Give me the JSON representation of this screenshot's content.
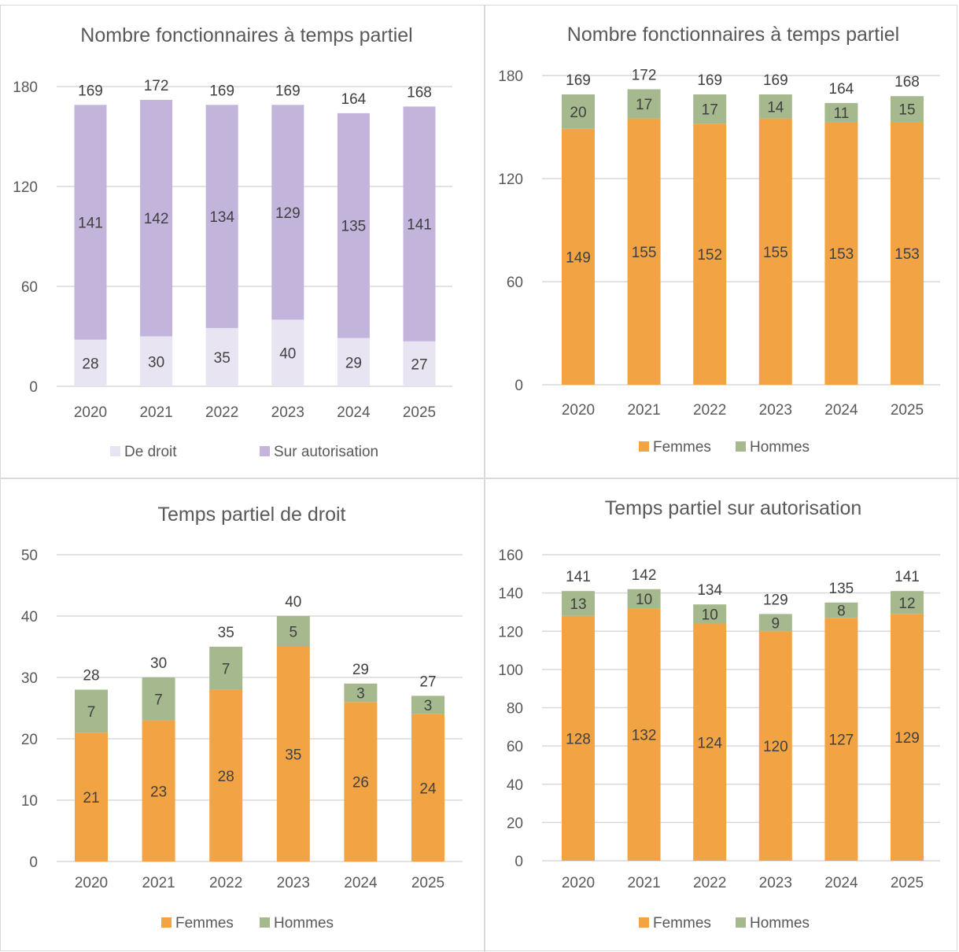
{
  "chart_data": [
    {
      "type": "bar",
      "stacked": true,
      "title": "Nombre fonctionnaires à temps partiel",
      "categories": [
        "2020",
        "2021",
        "2022",
        "2023",
        "2024",
        "2025"
      ],
      "series": [
        {
          "name": "De droit",
          "color": "#e8e4f2",
          "values": [
            28,
            30,
            35,
            40,
            29,
            27
          ]
        },
        {
          "name": "Sur autorisation",
          "color": "#c3b4dc",
          "values": [
            141,
            142,
            134,
            129,
            135,
            141
          ]
        }
      ],
      "totals": [
        169,
        172,
        169,
        169,
        164,
        168
      ],
      "ylim": [
        0,
        180
      ],
      "yticks": [
        0,
        60,
        120,
        180
      ],
      "grid": true,
      "legend": "bottom"
    },
    {
      "type": "bar",
      "stacked": true,
      "title": "Nombre fonctionnaires à temps partiel",
      "categories": [
        "2020",
        "2021",
        "2022",
        "2023",
        "2024",
        "2025"
      ],
      "series": [
        {
          "name": "Femmes",
          "color": "#f2a444",
          "values": [
            149,
            155,
            152,
            155,
            153,
            153
          ]
        },
        {
          "name": "Hommes",
          "color": "#a6b88e",
          "values": [
            20,
            17,
            17,
            14,
            11,
            15
          ]
        }
      ],
      "totals": [
        169,
        172,
        169,
        169,
        164,
        168
      ],
      "ylim": [
        0,
        180
      ],
      "yticks": [
        0,
        60,
        120,
        180
      ],
      "grid": true,
      "legend": "bottom"
    },
    {
      "type": "bar",
      "stacked": true,
      "title": "Temps partiel de droit",
      "categories": [
        "2020",
        "2021",
        "2022",
        "2023",
        "2024",
        "2025"
      ],
      "series": [
        {
          "name": "Femmes",
          "color": "#f2a444",
          "values": [
            21,
            23,
            28,
            35,
            26,
            24
          ]
        },
        {
          "name": "Hommes",
          "color": "#a6b88e",
          "values": [
            7,
            7,
            7,
            5,
            3,
            3
          ]
        }
      ],
      "totals": [
        28,
        30,
        35,
        40,
        29,
        27
      ],
      "ylim": [
        0,
        50
      ],
      "yticks": [
        0,
        10,
        20,
        30,
        40,
        50
      ],
      "grid": true,
      "legend": "bottom"
    },
    {
      "type": "bar",
      "stacked": true,
      "title": "Temps partiel sur autorisation",
      "categories": [
        "2020",
        "2021",
        "2022",
        "2023",
        "2024",
        "2025"
      ],
      "series": [
        {
          "name": "Femmes",
          "color": "#f2a444",
          "values": [
            128,
            132,
            124,
            120,
            127,
            129
          ]
        },
        {
          "name": "Hommes",
          "color": "#a6b88e",
          "values": [
            13,
            10,
            10,
            9,
            8,
            12
          ]
        }
      ],
      "totals": [
        141,
        142,
        134,
        129,
        135,
        141
      ],
      "ylim": [
        0,
        160
      ],
      "yticks": [
        0,
        20,
        40,
        60,
        80,
        100,
        120,
        140,
        160
      ],
      "grid": true,
      "legend": "bottom"
    }
  ]
}
